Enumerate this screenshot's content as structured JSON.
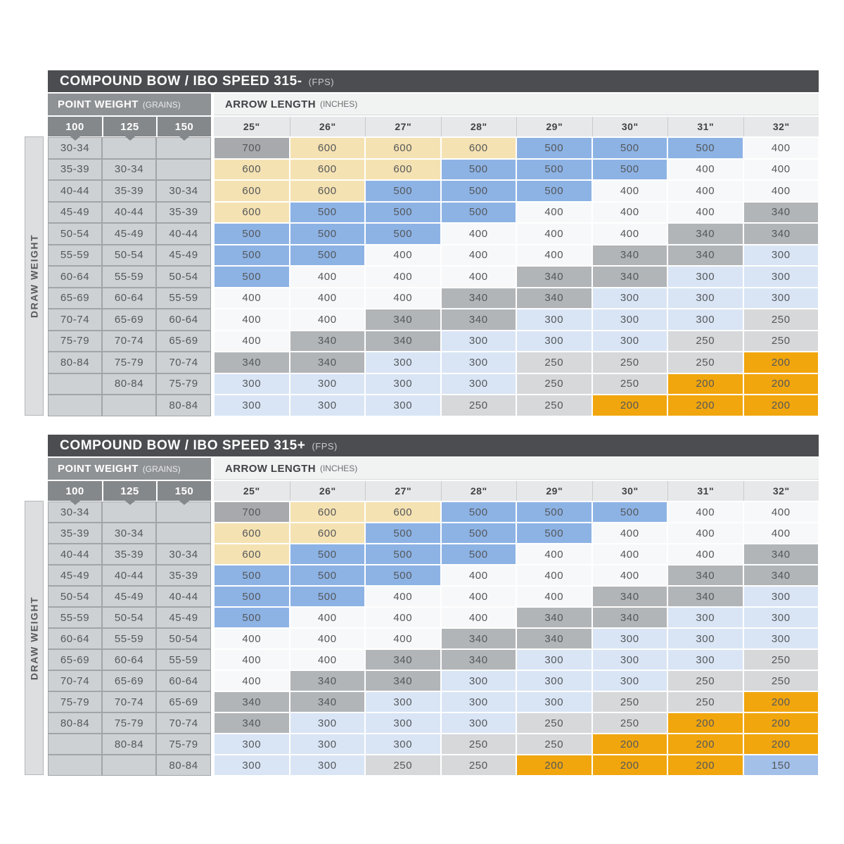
{
  "legend_colors": {
    "700": "#a7a9ac",
    "600": "#f5e2b2",
    "500": "#8db3e5",
    "400": "#f7f8f9",
    "340": "#b2b5b8",
    "300": "#d9e5f5",
    "250": "#d6d8da",
    "200": "#f1a60e",
    "150": "#a3c0e9"
  },
  "chart_data": [
    {
      "type": "table",
      "title": "COMPOUND BOW / IBO SPEED 315-",
      "title_unit": "(FPS)",
      "col_group_1": "POINT WEIGHT",
      "col_group_1_unit": "(GRAINS)",
      "col_group_2": "ARROW LENGTH",
      "col_group_2_unit": "(INCHES)",
      "row_axis_label": "DRAW WEIGHT",
      "point_weight_columns": [
        "100",
        "125",
        "150"
      ],
      "arrow_length_columns": [
        "25\"",
        "26\"",
        "27\"",
        "28\"",
        "29\"",
        "30\"",
        "31\"",
        "32\""
      ],
      "rows": [
        {
          "draw_weights": [
            "30-34",
            "",
            ""
          ],
          "spines": [
            "700",
            "600",
            "600",
            "600",
            "500",
            "500",
            "500",
            "400"
          ]
        },
        {
          "draw_weights": [
            "35-39",
            "30-34",
            ""
          ],
          "spines": [
            "600",
            "600",
            "600",
            "500",
            "500",
            "500",
            "400",
            "400"
          ]
        },
        {
          "draw_weights": [
            "40-44",
            "35-39",
            "30-34"
          ],
          "spines": [
            "600",
            "600",
            "500",
            "500",
            "500",
            "400",
            "400",
            "400"
          ]
        },
        {
          "draw_weights": [
            "45-49",
            "40-44",
            "35-39"
          ],
          "spines": [
            "600",
            "500",
            "500",
            "500",
            "400",
            "400",
            "400",
            "340"
          ]
        },
        {
          "draw_weights": [
            "50-54",
            "45-49",
            "40-44"
          ],
          "spines": [
            "500",
            "500",
            "500",
            "400",
            "400",
            "400",
            "340",
            "340"
          ]
        },
        {
          "draw_weights": [
            "55-59",
            "50-54",
            "45-49"
          ],
          "spines": [
            "500",
            "500",
            "400",
            "400",
            "400",
            "340",
            "340",
            "300"
          ]
        },
        {
          "draw_weights": [
            "60-64",
            "55-59",
            "50-54"
          ],
          "spines": [
            "500",
            "400",
            "400",
            "400",
            "340",
            "340",
            "300",
            "300"
          ]
        },
        {
          "draw_weights": [
            "65-69",
            "60-64",
            "55-59"
          ],
          "spines": [
            "400",
            "400",
            "400",
            "340",
            "340",
            "300",
            "300",
            "300"
          ]
        },
        {
          "draw_weights": [
            "70-74",
            "65-69",
            "60-64"
          ],
          "spines": [
            "400",
            "400",
            "340",
            "340",
            "300",
            "300",
            "300",
            "250"
          ]
        },
        {
          "draw_weights": [
            "75-79",
            "70-74",
            "65-69"
          ],
          "spines": [
            "400",
            "340",
            "340",
            "300",
            "300",
            "300",
            "250",
            "250"
          ]
        },
        {
          "draw_weights": [
            "80-84",
            "75-79",
            "70-74"
          ],
          "spines": [
            "340",
            "340",
            "300",
            "300",
            "250",
            "250",
            "250",
            "200"
          ]
        },
        {
          "draw_weights": [
            "",
            "80-84",
            "75-79"
          ],
          "spines": [
            "300",
            "300",
            "300",
            "300",
            "250",
            "250",
            "200",
            "200"
          ]
        },
        {
          "draw_weights": [
            "",
            "",
            "80-84"
          ],
          "spines": [
            "300",
            "300",
            "300",
            "250",
            "250",
            "200",
            "200",
            "200"
          ]
        }
      ]
    },
    {
      "type": "table",
      "title": "COMPOUND BOW / IBO SPEED 315+",
      "title_unit": "(FPS)",
      "col_group_1": "POINT WEIGHT",
      "col_group_1_unit": "(GRAINS)",
      "col_group_2": "ARROW LENGTH",
      "col_group_2_unit": "(INCHES)",
      "row_axis_label": "DRAW WEIGHT",
      "point_weight_columns": [
        "100",
        "125",
        "150"
      ],
      "arrow_length_columns": [
        "25\"",
        "26\"",
        "27\"",
        "28\"",
        "29\"",
        "30\"",
        "31\"",
        "32\""
      ],
      "rows": [
        {
          "draw_weights": [
            "30-34",
            "",
            ""
          ],
          "spines": [
            "700",
            "600",
            "600",
            "500",
            "500",
            "500",
            "400",
            "400"
          ]
        },
        {
          "draw_weights": [
            "35-39",
            "30-34",
            ""
          ],
          "spines": [
            "600",
            "600",
            "500",
            "500",
            "500",
            "400",
            "400",
            "400"
          ]
        },
        {
          "draw_weights": [
            "40-44",
            "35-39",
            "30-34"
          ],
          "spines": [
            "600",
            "500",
            "500",
            "500",
            "400",
            "400",
            "400",
            "340"
          ]
        },
        {
          "draw_weights": [
            "45-49",
            "40-44",
            "35-39"
          ],
          "spines": [
            "500",
            "500",
            "500",
            "400",
            "400",
            "400",
            "340",
            "340"
          ]
        },
        {
          "draw_weights": [
            "50-54",
            "45-49",
            "40-44"
          ],
          "spines": [
            "500",
            "500",
            "400",
            "400",
            "400",
            "340",
            "340",
            "300"
          ]
        },
        {
          "draw_weights": [
            "55-59",
            "50-54",
            "45-49"
          ],
          "spines": [
            "500",
            "400",
            "400",
            "400",
            "340",
            "340",
            "300",
            "300"
          ]
        },
        {
          "draw_weights": [
            "60-64",
            "55-59",
            "50-54"
          ],
          "spines": [
            "400",
            "400",
            "400",
            "340",
            "340",
            "300",
            "300",
            "300"
          ]
        },
        {
          "draw_weights": [
            "65-69",
            "60-64",
            "55-59"
          ],
          "spines": [
            "400",
            "400",
            "340",
            "340",
            "300",
            "300",
            "300",
            "250"
          ]
        },
        {
          "draw_weights": [
            "70-74",
            "65-69",
            "60-64"
          ],
          "spines": [
            "400",
            "340",
            "340",
            "300",
            "300",
            "300",
            "250",
            "250"
          ]
        },
        {
          "draw_weights": [
            "75-79",
            "70-74",
            "65-69"
          ],
          "spines": [
            "340",
            "340",
            "300",
            "300",
            "300",
            "250",
            "250",
            "200"
          ]
        },
        {
          "draw_weights": [
            "80-84",
            "75-79",
            "70-74"
          ],
          "spines": [
            "340",
            "300",
            "300",
            "300",
            "250",
            "250",
            "200",
            "200"
          ]
        },
        {
          "draw_weights": [
            "",
            "80-84",
            "75-79"
          ],
          "spines": [
            "300",
            "300",
            "300",
            "250",
            "250",
            "200",
            "200",
            "200"
          ]
        },
        {
          "draw_weights": [
            "",
            "",
            "80-84"
          ],
          "spines": [
            "300",
            "300",
            "250",
            "250",
            "200",
            "200",
            "200",
            "150"
          ]
        }
      ]
    }
  ]
}
